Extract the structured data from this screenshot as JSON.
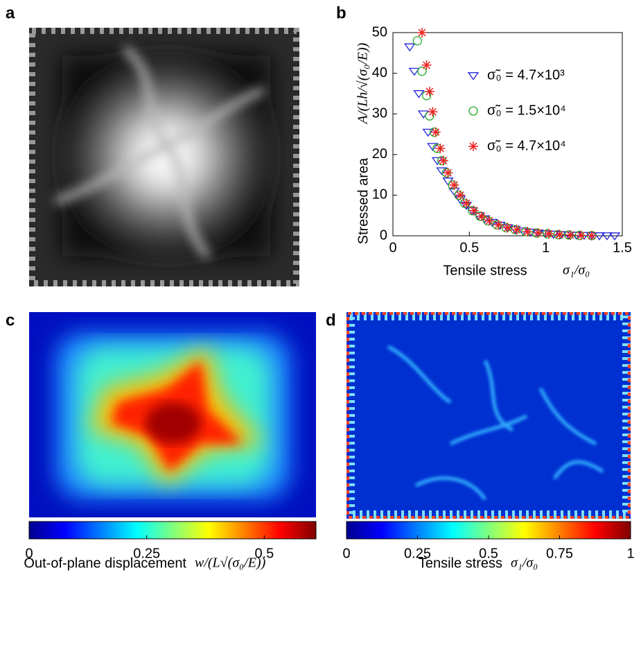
{
  "panels": [
    "a",
    "b",
    "c",
    "d"
  ],
  "chart_data": [
    {
      "type": "scatter",
      "ylabel": "Stressed area",
      "ylabel_math": "A/(Lh/√(σ₀/E))",
      "xlabel": "Tensile stress",
      "xlabel_math": "σ₁/σ₀",
      "xlim": [
        0,
        1.5
      ],
      "xticks": [
        0,
        0.5,
        1,
        1.5
      ],
      "ylim": [
        0,
        50
      ],
      "yticks": [
        0,
        10,
        20,
        30,
        40,
        50
      ],
      "grid": false,
      "legend": "upper right",
      "series": [
        {
          "name": "σ̃₀ = 4.7×10³",
          "color": "#2222dd",
          "marker": "triangle-down",
          "x": [
            0.11,
            0.14,
            0.17,
            0.2,
            0.23,
            0.26,
            0.29,
            0.32,
            0.36,
            0.4,
            0.44,
            0.48,
            0.52,
            0.56,
            0.6,
            0.65,
            0.7,
            0.75,
            0.8,
            0.85,
            0.9,
            0.95,
            1.0,
            1.05,
            1.1,
            1.15,
            1.2,
            1.25,
            1.3,
            1.35,
            1.4,
            1.45
          ],
          "values": [
            46.5,
            40.5,
            35,
            30,
            25.5,
            22,
            18.5,
            16,
            13.5,
            11,
            9,
            7.5,
            6.2,
            5,
            4.2,
            3.3,
            2.6,
            2,
            1.6,
            1.2,
            0.9,
            0.7,
            0.5,
            0.4,
            0.3,
            0.2,
            0.15,
            0.1,
            0.05,
            0.02,
            0.01,
            0
          ]
        },
        {
          "name": "σ̃₀ = 1.5×10⁴",
          "color": "#22aa22",
          "marker": "circle",
          "x": [
            0.16,
            0.19,
            0.22,
            0.24,
            0.27,
            0.29,
            0.32,
            0.35,
            0.39,
            0.43,
            0.47,
            0.52,
            0.57,
            0.62,
            0.68,
            0.74,
            0.8,
            0.87,
            0.94,
            1.01,
            1.08,
            1.15,
            1.22,
            1.3
          ],
          "values": [
            48,
            40.5,
            34.5,
            29.5,
            25.5,
            21.5,
            18.5,
            15.5,
            12.5,
            10,
            8,
            6.2,
            4.8,
            3.7,
            2.7,
            2,
            1.5,
            1,
            0.7,
            0.5,
            0.3,
            0.2,
            0.1,
            0.05
          ]
        },
        {
          "name": "σ̃₀ = 4.7×10⁴",
          "color": "#ee2222",
          "marker": "star",
          "x": [
            0.19,
            0.22,
            0.24,
            0.26,
            0.28,
            0.31,
            0.33,
            0.36,
            0.4,
            0.44,
            0.48,
            0.53,
            0.58,
            0.63,
            0.69,
            0.75,
            0.81,
            0.88,
            0.95,
            1.02,
            1.09,
            1.16,
            1.23,
            1.3
          ],
          "values": [
            50,
            42,
            35.5,
            30.5,
            25.5,
            21.5,
            18.5,
            15.5,
            12.5,
            10,
            8,
            6.2,
            4.8,
            3.7,
            2.7,
            2,
            1.5,
            1,
            0.7,
            0.5,
            0.3,
            0.2,
            0.1,
            0.05
          ]
        }
      ]
    },
    {
      "type": "colorbar",
      "label": "Out-of-plane displacement",
      "label_math": "w/(L√(σ₀/E))",
      "xlim": [
        0,
        0.61
      ],
      "xticks": [
        0,
        0.25,
        0.5
      ]
    },
    {
      "type": "colorbar",
      "label": "Tensile stress",
      "label_math": "σ₁/σ₀",
      "xlim": [
        0,
        1
      ],
      "xticks": [
        0,
        0.25,
        0.5,
        0.75,
        1
      ]
    }
  ]
}
